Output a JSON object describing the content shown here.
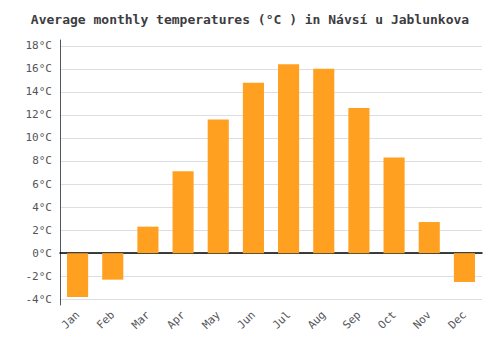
{
  "chart_data": {
    "type": "bar",
    "title": "Average monthly temperatures (°C ) in Návsí u Jablunkova",
    "categories": [
      "Jan",
      "Feb",
      "Mar",
      "Apr",
      "May",
      "Jun",
      "Jul",
      "Aug",
      "Sep",
      "Oct",
      "Nov",
      "Dec"
    ],
    "values": [
      -3.8,
      -2.3,
      2.3,
      7.1,
      11.6,
      14.8,
      16.4,
      16.0,
      12.6,
      8.3,
      2.7,
      -2.5
    ],
    "color": "#FFA020",
    "ylim": [
      -4.5,
      18.5
    ],
    "yticks": [
      {
        "value": -4,
        "label": "-4°C"
      },
      {
        "value": -2,
        "label": "-2°C"
      },
      {
        "value": 0,
        "label": "0°C"
      },
      {
        "value": 2,
        "label": "2°C"
      },
      {
        "value": 4,
        "label": "4°C"
      },
      {
        "value": 6,
        "label": "6°C"
      },
      {
        "value": 8,
        "label": "8°C"
      },
      {
        "value": 10,
        "label": "10°C"
      },
      {
        "value": 12,
        "label": "12°C"
      },
      {
        "value": 14,
        "label": "14°C"
      },
      {
        "value": 16,
        "label": "16°C"
      },
      {
        "value": 18,
        "label": "18°C"
      }
    ],
    "grid": true
  }
}
